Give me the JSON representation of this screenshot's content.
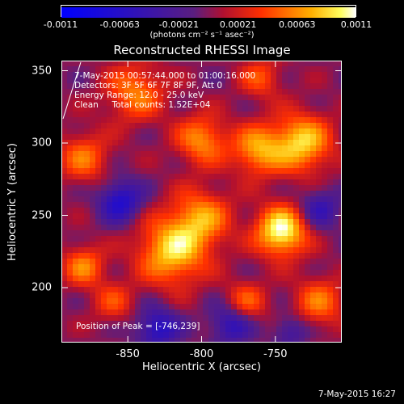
{
  "colorbar": {
    "tick_labels": [
      "-0.0011",
      "-0.00063",
      "-0.00021",
      "0.00021",
      "0.00063",
      "0.0011"
    ],
    "units": "(photons cm⁻² s⁻¹ asec⁻²)"
  },
  "plot": {
    "title": "Reconstructed RHESSI Image",
    "annotations": [
      "7-May-2015 00:57:44.000 to 01:00:16.000",
      "Detectors: 3F 5F 6F 7F 8F 9F, Att 0",
      "Energy Range: 12.0 - 25.0 keV",
      "Clean     Total counts: 1.52E+04"
    ],
    "peak_text": "Position of Peak = [-746,239]",
    "xlabel": "Heliocentric X (arcsec)",
    "ylabel": "Heliocentric Y (arcsec)",
    "xticks": [
      "-850",
      "-800",
      "-750"
    ],
    "yticks": [
      "350",
      "300",
      "250",
      "200"
    ],
    "xlim": [
      -895,
      -705
    ],
    "ylim": [
      162,
      357
    ],
    "peak": [
      -746,
      239
    ]
  },
  "footer": {
    "date": "7-May-2015 16:27"
  },
  "colors": {
    "negative": "#0000ff",
    "zero": "#5a1e80",
    "positive_low": "#ff3000",
    "positive_high": "#ffffff"
  },
  "image_blobs": [
    {
      "x": -746,
      "y": 239,
      "amp": 1.0,
      "s": 12
    },
    {
      "x": -820,
      "y": 225,
      "amp": 0.8,
      "s": 16
    },
    {
      "x": -800,
      "y": 248,
      "amp": 0.6,
      "s": 14
    },
    {
      "x": -762,
      "y": 295,
      "amp": 0.65,
      "s": 12
    },
    {
      "x": -732,
      "y": 300,
      "amp": 0.8,
      "s": 14
    },
    {
      "x": -845,
      "y": 335,
      "amp": 0.55,
      "s": 14
    },
    {
      "x": -800,
      "y": 302,
      "amp": 0.6,
      "s": 12
    },
    {
      "x": -880,
      "y": 290,
      "amp": 0.5,
      "s": 12
    },
    {
      "x": -880,
      "y": 215,
      "amp": 0.55,
      "s": 10
    },
    {
      "x": -720,
      "y": 190,
      "amp": 0.5,
      "s": 12
    },
    {
      "x": -770,
      "y": 190,
      "amp": 0.45,
      "s": 10
    },
    {
      "x": -860,
      "y": 190,
      "amp": 0.35,
      "s": 10
    },
    {
      "x": -760,
      "y": 345,
      "amp": 0.4,
      "s": 10
    },
    {
      "x": -855,
      "y": 260,
      "amp": -0.6,
      "s": 10
    },
    {
      "x": -830,
      "y": 172,
      "amp": -0.55,
      "s": 10
    },
    {
      "x": -780,
      "y": 175,
      "amp": -0.5,
      "s": 10
    },
    {
      "x": -720,
      "y": 255,
      "amp": -0.4,
      "s": 10
    },
    {
      "x": -740,
      "y": 170,
      "amp": -0.35,
      "s": 8
    }
  ]
}
